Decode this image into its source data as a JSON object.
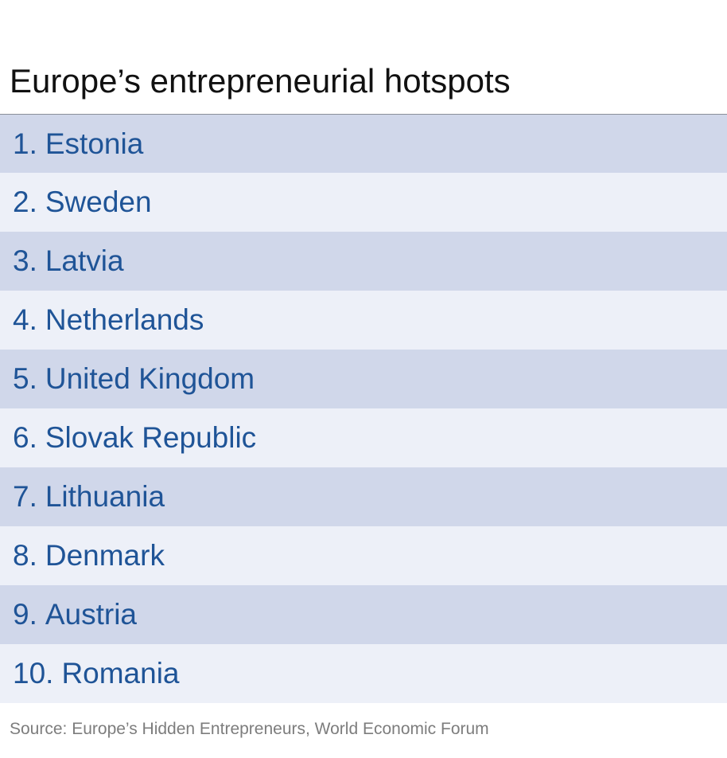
{
  "chart_data": {
    "type": "table",
    "title": "Europe’s entrepreneurial hotspots",
    "rows": [
      {
        "rank": "1.",
        "country": "Estonia"
      },
      {
        "rank": "2.",
        "country": "Sweden"
      },
      {
        "rank": "3.",
        "country": "Latvia"
      },
      {
        "rank": "4.",
        "country": "Netherlands"
      },
      {
        "rank": "5.",
        "country": "United Kingdom"
      },
      {
        "rank": "6.",
        "country": "Slovak Republic"
      },
      {
        "rank": "7.",
        "country": "Lithuania"
      },
      {
        "rank": "8.",
        "country": "Denmark"
      },
      {
        "rank": "9.",
        "country": "Austria"
      },
      {
        "rank": "10.",
        "country": "Romania"
      }
    ],
    "source": "Source: Europe’s Hidden Entrepreneurs, World Economic Forum"
  },
  "colors": {
    "title_text": "#111111",
    "row_text": "#1f5497",
    "row_band_dark": "#d0d7ea",
    "row_band_light": "#edf0f8",
    "source_text": "#7d7d7d"
  }
}
